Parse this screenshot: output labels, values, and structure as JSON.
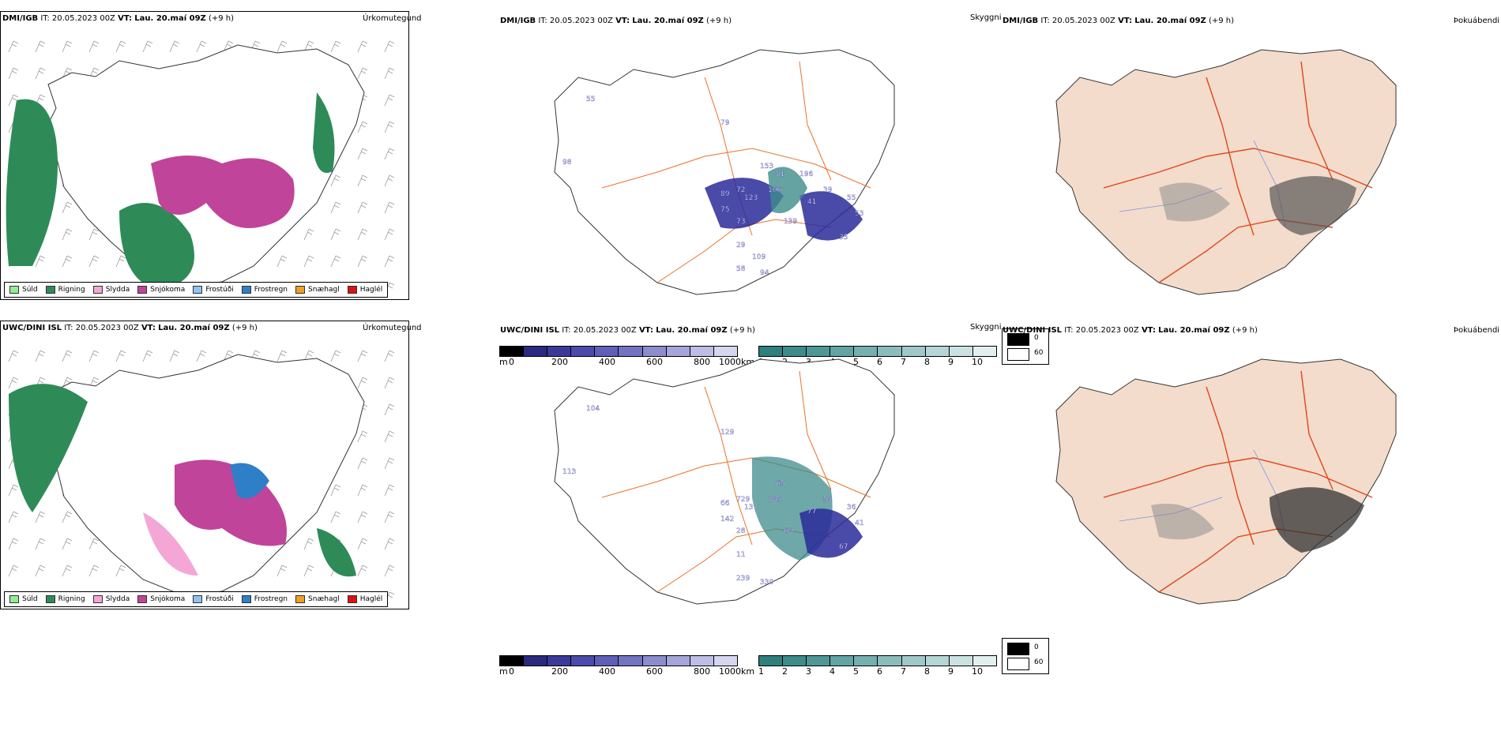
{
  "rows": [
    {
      "id": "dmi",
      "precip": {
        "model": "DMI/IGB",
        "it_label": "IT:",
        "it": "20.05.2023 00Z",
        "vt_label": "VT:",
        "vt": "Lau. 20.maí 09Z",
        "lead": "(+9 h)",
        "title": "Úrkomutegund"
      },
      "vis": {
        "model": "DMI/IGB",
        "it_label": "IT:",
        "it": "20.05.2023 00Z",
        "vt_label": "VT:",
        "vt": "Lau. 20.maí 09Z",
        "lead": "(+9 h)",
        "title": "Skyggni",
        "labels": [
          "55",
          "79",
          "81",
          "72",
          "166",
          "123",
          "89",
          "73",
          "75",
          "98",
          "41",
          "39",
          "55",
          "53",
          "35",
          "29",
          "139",
          "58",
          "94",
          "109",
          "196",
          "153"
        ]
      },
      "fog": {
        "model": "DMI/IGB",
        "it_label": "IT:",
        "it": "20.05.2023 00Z",
        "vt_label": "VT:",
        "vt": "Lau. 20.maí 09Z",
        "lead": "(+9 h)",
        "title": "Þokuábendi"
      }
    },
    {
      "id": "uwc",
      "precip": {
        "model": "UWC/DINI ISL",
        "it_label": "IT:",
        "it": "20.05.2023 00Z",
        "vt_label": "VT:",
        "vt": "Lau. 20.maí 09Z",
        "lead": "(+9 h)",
        "title": "Úrkomutegund"
      },
      "vis": {
        "model": "UWC/DINI ISL",
        "it_label": "IT:",
        "it": "20.05.2023 00Z",
        "vt_label": "VT:",
        "vt": "Lau. 20.maí 09Z",
        "lead": "(+9 h)",
        "title": "Skyggni",
        "labels": [
          "104",
          "129",
          "65",
          "729",
          "185",
          "137",
          "66",
          "28",
          "142",
          "113",
          "77",
          "54",
          "36",
          "41",
          "67",
          "11",
          "60",
          "239",
          "330"
        ]
      },
      "fog": {
        "model": "UWC/DINI ISL",
        "it_label": "IT:",
        "it": "20.05.2023 00Z",
        "vt_label": "VT:",
        "vt": "Lau. 20.maí 09Z",
        "lead": "(+9 h)",
        "title": "Þokuábendi"
      }
    }
  ],
  "precip_legend": [
    {
      "label": "Súld",
      "color": "#90ee90"
    },
    {
      "label": "Rigning",
      "color": "#2e8b57"
    },
    {
      "label": "Slydda",
      "color": "#f4a6d7"
    },
    {
      "label": "Snjókoma",
      "color": "#c0449a"
    },
    {
      "label": "Frostúði",
      "color": "#8fc3f0"
    },
    {
      "label": "Frostregn",
      "color": "#2f7fc8"
    },
    {
      "label": "Snæhagl",
      "color": "#f0a020"
    },
    {
      "label": "Haglél",
      "color": "#e01010"
    }
  ],
  "vis_legend": {
    "height_unit": "m",
    "height_ticks": [
      "0",
      "200",
      "400",
      "600",
      "800",
      "1000"
    ],
    "height_colors": [
      "#000000",
      "#2a2a80",
      "#3a3a9a",
      "#4b4bab",
      "#5f5fb8",
      "#7373c2",
      "#8c8cce",
      "#a5a5da",
      "#bdbde6",
      "#d6d6f0"
    ],
    "dist_unit": "km",
    "dist_ticks": [
      "1",
      "2",
      "3",
      "4",
      "5",
      "6",
      "7",
      "8",
      "9",
      "10"
    ],
    "dist_colors": [
      "#2f7f7f",
      "#3e8b8b",
      "#4f9797",
      "#62a3a3",
      "#76afaf",
      "#8bbcbc",
      "#a0c8c8",
      "#b6d5d5",
      "#cce2e2",
      "#e3efef"
    ]
  },
  "fog_legend": {
    "low": "0",
    "high": "60",
    "low_color": "#000000",
    "high_color": "#ffffff"
  },
  "colors": {
    "land": "#f3dccb",
    "road": "#e8722a",
    "river": "#7f8ff0",
    "rain": "#2e8b57",
    "snow": "#c0449a",
    "sleet": "#f4a6d7",
    "frzrain": "#2f7fc8",
    "vis_teal": "#3e8b8b",
    "vis_blue": "#2a2a9a"
  }
}
